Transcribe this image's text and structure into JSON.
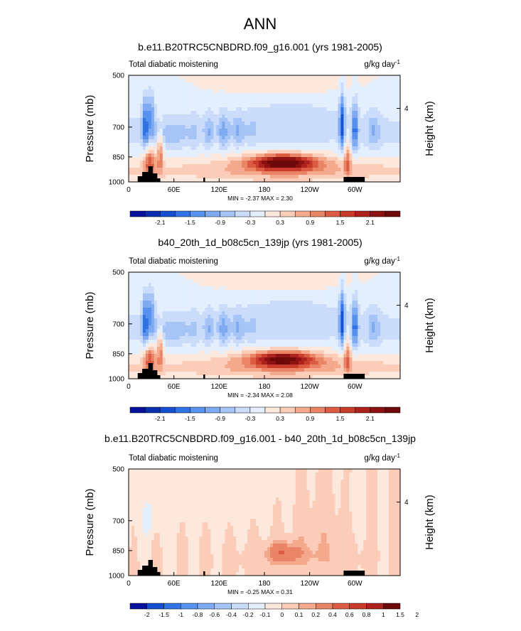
{
  "figure": {
    "title": "ANN"
  },
  "panel_text": {
    "field_label": "Total diabatic moistening",
    "units_label": "g/kg day",
    "units_exponent": "-1",
    "left_axis_label": "Pressure (mb)",
    "right_axis_label": "Height (km)"
  },
  "colors": {
    "topography": "#000000",
    "levels_abs": [
      "#08119a",
      "#0b2fb3",
      "#1550d0",
      "#3173e4",
      "#5792ef",
      "#7eaaf2",
      "#a6c4f6",
      "#cadcfa",
      "#e4effd",
      "#fde8de",
      "#fbcdb9",
      "#f4a98d",
      "#ea8466",
      "#dc5c43",
      "#c93b2a",
      "#ac231d",
      "#8c1212",
      "#6d0909"
    ],
    "levels_diff": [
      "#08119a",
      "#1550d0",
      "#3173e4",
      "#5792ef",
      "#7eaaf2",
      "#a6c4f6",
      "#cadcfa",
      "#e4effd",
      "#fde8de",
      "#fbcdb9",
      "#f4a98d",
      "#ea8466",
      "#dc5c43",
      "#c93b2a",
      "#ac231d",
      "#6d0909"
    ]
  },
  "chart_data": [
    {
      "type": "heatmap",
      "title": "b.e11.B20TRC5CNBDRD.f09_g16.001 (yrs 1981-2005)",
      "xlabel": "",
      "ylabel": "Pressure (mb)",
      "y2label": "Height (km)",
      "x_ticks": [
        "0",
        "60E",
        "120E",
        "180",
        "120W",
        "60W"
      ],
      "x_tick_values": [
        0,
        60,
        120,
        180,
        240,
        300
      ],
      "xlim": [
        0,
        360
      ],
      "y_ticks": [
        "500",
        "700",
        "850",
        "1000"
      ],
      "y_tick_values": [
        500,
        700,
        850,
        1000
      ],
      "ylim": [
        500,
        1000
      ],
      "y_axis_scale": "log",
      "y2_ticks": [
        "4"
      ],
      "min": -2.37,
      "max": 2.3,
      "minmax_text": "MIN = -2.37  MAX =  2.30",
      "colorbar_labels": [
        "-2.1",
        "-1.5",
        "-0.9",
        "-0.3",
        "0.3",
        "0.9",
        "1.5",
        "2.1"
      ],
      "features": [
        {
          "kind": "positive_max",
          "lon": 200,
          "p": 880,
          "value": 2.3
        },
        {
          "kind": "negative_band",
          "lon": [
            110,
            160
          ],
          "p": 720,
          "value": -0.6
        },
        {
          "kind": "negative_band",
          "lon": [
            30,
            60
          ],
          "p": 730,
          "value": -0.5
        },
        {
          "kind": "negative_band",
          "lon": [
            180,
            250
          ],
          "p": 640,
          "value": -0.3
        },
        {
          "kind": "narrow_negative",
          "lon": 25,
          "p": 680,
          "value": -1.2
        },
        {
          "kind": "narrow_negative",
          "lon": 285,
          "p": 700,
          "value": -1.5
        },
        {
          "kind": "narrow_negative",
          "lon": 300,
          "p": 700,
          "value": -1.3
        }
      ]
    },
    {
      "type": "heatmap",
      "title": "b40_20th_1d_b08c5cn_139jp (yrs 1981-2005)",
      "xlabel": "",
      "ylabel": "Pressure (mb)",
      "y2label": "Height (km)",
      "x_ticks": [
        "0",
        "60E",
        "120E",
        "180",
        "120W",
        "60W"
      ],
      "x_tick_values": [
        0,
        60,
        120,
        180,
        240,
        300
      ],
      "xlim": [
        0,
        360
      ],
      "y_ticks": [
        "500",
        "700",
        "850",
        "1000"
      ],
      "y_tick_values": [
        500,
        700,
        850,
        1000
      ],
      "ylim": [
        500,
        1000
      ],
      "y_axis_scale": "log",
      "y2_ticks": [
        "4"
      ],
      "min": -2.34,
      "max": 2.08,
      "minmax_text": "MIN = -2.34  MAX =  2.08",
      "colorbar_labels": [
        "-2.1",
        "-1.5",
        "-0.9",
        "-0.3",
        "0.3",
        "0.9",
        "1.5",
        "2.1"
      ],
      "features": [
        {
          "kind": "positive_max",
          "lon": 210,
          "p": 870,
          "value": 2.0
        },
        {
          "kind": "negative_band",
          "lon": [
            100,
            160
          ],
          "p": 720,
          "value": -0.7
        },
        {
          "kind": "negative_band",
          "lon": [
            40,
            90
          ],
          "p": 730,
          "value": -0.6
        },
        {
          "kind": "narrow_negative",
          "lon": 25,
          "p": 680,
          "value": -1.3
        },
        {
          "kind": "narrow_negative",
          "lon": 285,
          "p": 700,
          "value": -1.6
        },
        {
          "kind": "narrow_negative",
          "lon": 300,
          "p": 700,
          "value": -1.3
        }
      ]
    },
    {
      "type": "heatmap",
      "title": "b.e11.B20TRC5CNBDRD.f09_g16.001 - b40_20th_1d_b08c5cn_139jp",
      "xlabel": "",
      "ylabel": "Pressure (mb)",
      "y2label": "Height (km)",
      "x_ticks": [
        "0",
        "60E",
        "120E",
        "180",
        "120W",
        "60W"
      ],
      "x_tick_values": [
        0,
        60,
        120,
        180,
        240,
        300
      ],
      "xlim": [
        0,
        360
      ],
      "y_ticks": [
        "500",
        "700",
        "850",
        "1000"
      ],
      "y_tick_values": [
        500,
        700,
        850,
        1000
      ],
      "ylim": [
        500,
        1000
      ],
      "y_axis_scale": "log",
      "y2_ticks": [
        "4"
      ],
      "min": -0.25,
      "max": 0.31,
      "minmax_text": "MIN = -0.25  MAX =  0.31",
      "colorbar_labels": [
        "-2",
        "-1.5",
        "-1",
        "-0.8",
        "-0.6",
        "-0.4",
        "-0.2",
        "-0.1",
        "0",
        "0.1",
        "0.2",
        "0.4",
        "0.6",
        "0.8",
        "1",
        "1.5",
        "2"
      ],
      "features": [
        {
          "kind": "positive_max",
          "lon": 200,
          "p": 860,
          "value": 0.3
        },
        {
          "kind": "positive_band",
          "lon": [
            220,
            280
          ],
          "p": 700,
          "value": 0.05
        },
        {
          "kind": "negative_band",
          "lon": [
            0,
            60
          ],
          "p": 620,
          "value": -0.05
        }
      ]
    }
  ]
}
